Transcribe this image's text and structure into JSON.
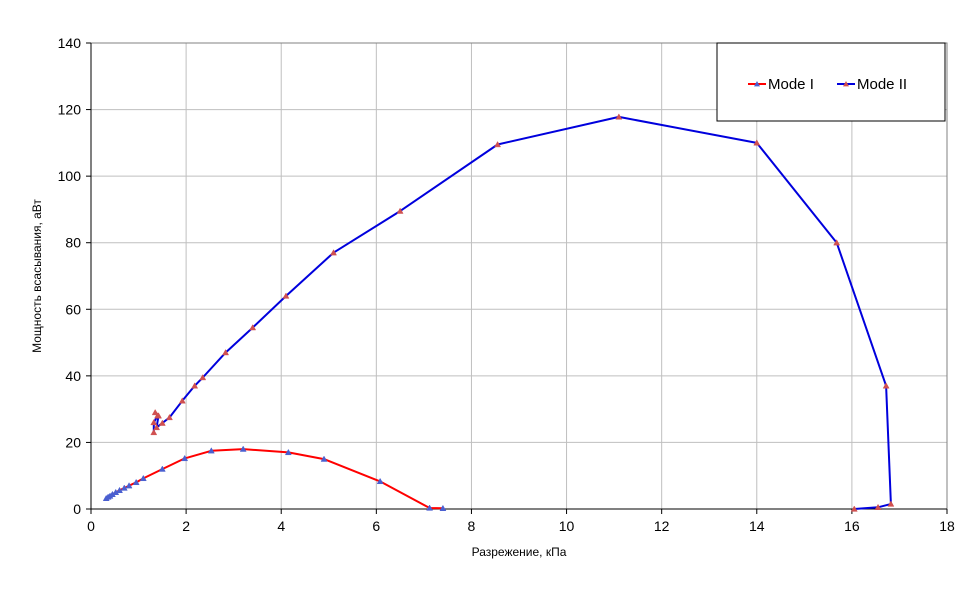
{
  "chart_data": {
    "type": "line",
    "xlabel": "Разрежение, кПа",
    "ylabel": "Мощность всасывания, аВт",
    "xlim": [
      0,
      18
    ],
    "ylim": [
      0,
      140
    ],
    "xticks": [
      0,
      2,
      4,
      6,
      8,
      10,
      12,
      14,
      16,
      18
    ],
    "yticks": [
      0,
      20,
      40,
      60,
      80,
      100,
      120,
      140
    ],
    "grid": true,
    "legend_position": "top-right",
    "series": [
      {
        "name": "Mode I",
        "color": "#ff0000",
        "marker_color": "#4a5fd0",
        "points": [
          [
            0.32,
            3.2
          ],
          [
            0.36,
            3.6
          ],
          [
            0.4,
            3.9
          ],
          [
            0.45,
            4.4
          ],
          [
            0.52,
            5.0
          ],
          [
            0.6,
            5.6
          ],
          [
            0.7,
            6.3
          ],
          [
            0.8,
            7.0
          ],
          [
            0.95,
            8.0
          ],
          [
            1.1,
            9.2
          ],
          [
            1.5,
            12.0
          ],
          [
            1.97,
            15.2
          ],
          [
            2.53,
            17.5
          ],
          [
            3.2,
            18.0
          ],
          [
            4.15,
            17.0
          ],
          [
            4.9,
            15.0
          ],
          [
            6.08,
            8.3
          ],
          [
            7.12,
            0.3
          ],
          [
            7.4,
            0.2
          ]
        ]
      },
      {
        "name": "Mode II",
        "color": "#0000dd",
        "marker_color": "#d05050",
        "points": [
          [
            1.32,
            23.0
          ],
          [
            1.32,
            26.0
          ],
          [
            1.4,
            28.0
          ],
          [
            1.35,
            29.0
          ],
          [
            1.42,
            28.0
          ],
          [
            1.38,
            24.5
          ],
          [
            1.5,
            25.8
          ],
          [
            1.65,
            27.5
          ],
          [
            1.92,
            32.5
          ],
          [
            2.18,
            37.0
          ],
          [
            2.35,
            39.5
          ],
          [
            2.83,
            47.0
          ],
          [
            3.4,
            54.5
          ],
          [
            4.1,
            64.0
          ],
          [
            5.1,
            77.0
          ],
          [
            6.5,
            89.5
          ],
          [
            8.55,
            109.5
          ],
          [
            11.1,
            117.8
          ],
          [
            14.0,
            110.0
          ],
          [
            15.68,
            80.0
          ],
          [
            16.72,
            37.0
          ],
          [
            16.82,
            1.5
          ],
          [
            16.55,
            0.5
          ],
          [
            16.05,
            0.0
          ]
        ]
      }
    ]
  }
}
